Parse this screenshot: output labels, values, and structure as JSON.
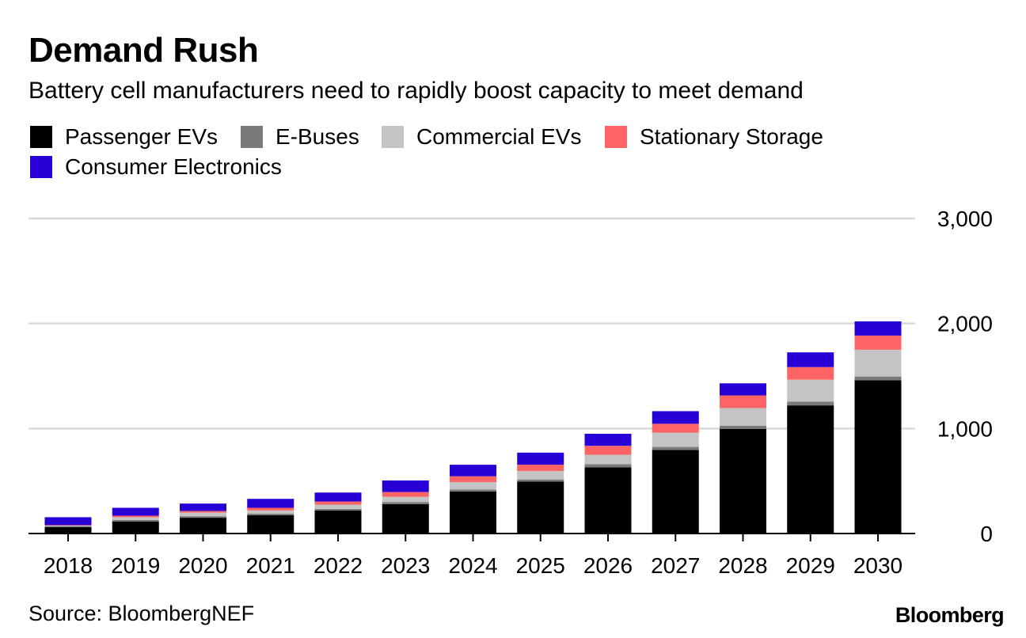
{
  "header": {
    "title": "Demand Rush",
    "subtitle": "Battery cell manufacturers need to rapidly boost capacity to meet demand"
  },
  "footer": {
    "source": "Source: BloombergNEF",
    "brand": "Bloomberg"
  },
  "colors": {
    "Passenger EVs": "#000000",
    "E-Buses": "#7a7a7a",
    "Commercial EVs": "#c4c4c4",
    "Stationary Storage": "#ff6464",
    "Consumer Electronics": "#2800d7",
    "grid": "#d9d9d9"
  },
  "chart_data": {
    "type": "bar",
    "stacked": true,
    "title": "Demand Rush",
    "subtitle": "Battery cell manufacturers need to rapidly boost capacity to meet demand",
    "categories": [
      "2018",
      "2019",
      "2020",
      "2021",
      "2022",
      "2023",
      "2024",
      "2025",
      "2026",
      "2027",
      "2028",
      "2029",
      "2030"
    ],
    "series": [
      {
        "name": "Passenger EVs",
        "values": [
          60,
          115,
          150,
          175,
          220,
          280,
          400,
          495,
          630,
          795,
          995,
          1220,
          1460
        ]
      },
      {
        "name": "E-Buses",
        "values": [
          10,
          15,
          15,
          15,
          15,
          20,
          20,
          20,
          30,
          30,
          30,
          35,
          35
        ]
      },
      {
        "name": "Commercial EVs",
        "values": [
          5,
          25,
          35,
          30,
          40,
          50,
          70,
          80,
          90,
          135,
          170,
          210,
          255
        ]
      },
      {
        "name": "Stationary Storage",
        "values": [
          5,
          15,
          15,
          25,
          30,
          45,
          55,
          60,
          85,
          85,
          120,
          120,
          135
        ]
      },
      {
        "name": "Consumer Electronics",
        "values": [
          75,
          75,
          70,
          85,
          85,
          110,
          110,
          115,
          115,
          120,
          115,
          140,
          135
        ]
      }
    ],
    "yticks": [
      0,
      1000,
      2000,
      3000
    ],
    "ytick_labels": [
      "0",
      "1,000",
      "2,000",
      "3,000"
    ],
    "ylim": [
      0,
      3000
    ],
    "xlabel": "",
    "ylabel": "",
    "y_axis_side": "right",
    "grid": true,
    "legend_position": "top-left"
  }
}
